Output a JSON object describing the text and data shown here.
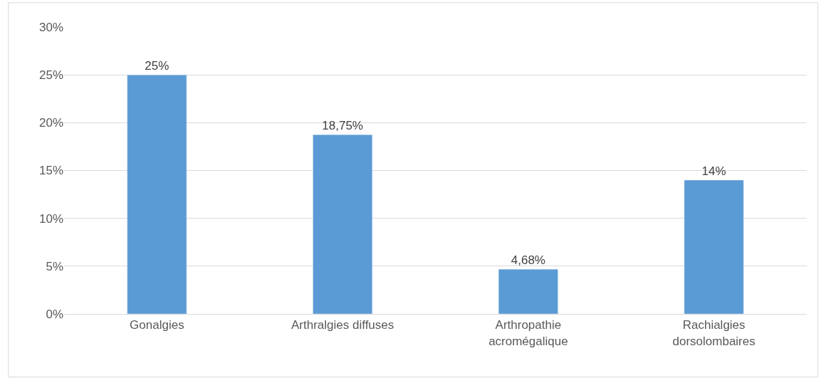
{
  "chart_data": {
    "type": "bar",
    "categories": [
      "Gonalgies",
      "Arthralgies diffuses",
      "Arthropathie acromégalique",
      "Rachialgies dorsolombaires"
    ],
    "values": [
      25,
      18.75,
      4.68,
      14
    ],
    "color": "#5b9bd5",
    "value_labels": [
      "25%",
      "18,75%",
      "4,68%",
      "14%"
    ],
    "ylim": [
      0,
      30
    ],
    "yticks": [
      {
        "value": 0,
        "label": "0%"
      },
      {
        "value": 5,
        "label": "5%"
      },
      {
        "value": 10,
        "label": "10%"
      },
      {
        "value": 15,
        "label": "15%"
      },
      {
        "value": 20,
        "label": "20%"
      },
      {
        "value": 25,
        "label": "25%"
      },
      {
        "value": 30,
        "label": "30%"
      }
    ],
    "grid": "y",
    "legend": false
  }
}
